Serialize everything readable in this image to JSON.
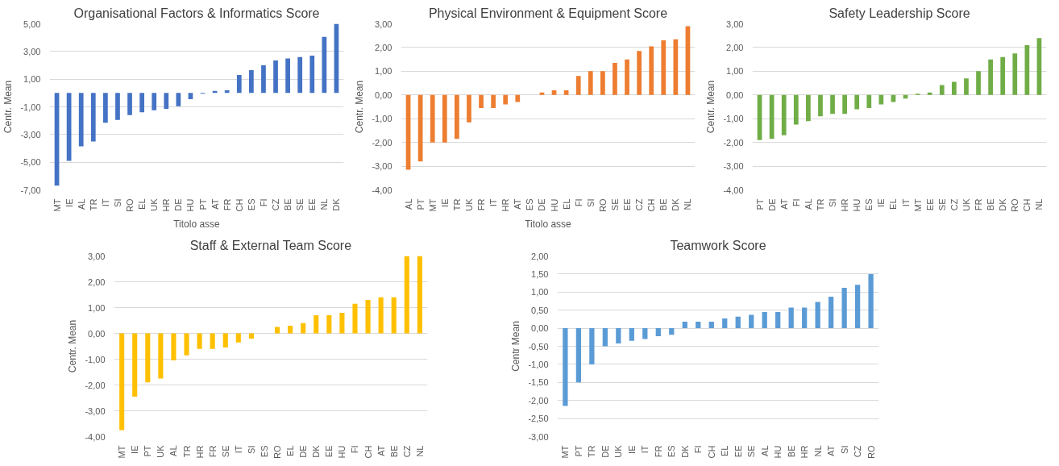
{
  "chart_data": [
    {
      "type": "bar",
      "title": "Organisational Factors & Informatics Score",
      "xlabel": "Titolo asse",
      "ylabel": "Centr. Mean",
      "categories": [
        "MT",
        "IE",
        "AL",
        "TR",
        "IT",
        "SI",
        "RO",
        "EL",
        "UK",
        "HR",
        "DE",
        "HU",
        "PT",
        "AT",
        "FR",
        "CH",
        "ES",
        "FI",
        "CZ",
        "BE",
        "SE",
        "EE",
        "NL",
        "DK"
      ],
      "values": [
        -6.7,
        -4.9,
        -3.85,
        -3.5,
        -2.15,
        -1.95,
        -1.6,
        -1.4,
        -1.25,
        -1.15,
        -0.95,
        -0.45,
        -0.05,
        0.15,
        0.2,
        1.3,
        1.65,
        2.0,
        2.35,
        2.5,
        2.6,
        2.7,
        4.05,
        5.0
      ],
      "color": "#4472c4",
      "ylim": [
        -7,
        5
      ],
      "yticks": [
        {
          "value": -7,
          "label": "-7,00"
        },
        {
          "value": -5,
          "label": "-5,00"
        },
        {
          "value": -3,
          "label": "-3,00"
        },
        {
          "value": -1,
          "label": "-1,00"
        },
        {
          "value": 1,
          "label": "1,00"
        },
        {
          "value": 3,
          "label": "3,00"
        },
        {
          "value": 5,
          "label": "5,00"
        }
      ],
      "grid": "y"
    },
    {
      "type": "bar",
      "title": "Physical Environment & Equipment Score",
      "xlabel": "Titolo asse",
      "ylabel": "Centr. Mean",
      "categories": [
        "AL",
        "PT",
        "MT",
        "IE",
        "TR",
        "UK",
        "FR",
        "IT",
        "HR",
        "AT",
        "ES",
        "DE",
        "HU",
        "EL",
        "FI",
        "SI",
        "RO",
        "SE",
        "EE",
        "CZ",
        "CH",
        "BE",
        "DK",
        "NL"
      ],
      "values": [
        -3.15,
        -2.8,
        -2.0,
        -2.0,
        -1.85,
        -1.15,
        -0.55,
        -0.55,
        -0.4,
        -0.3,
        null,
        0.1,
        0.2,
        0.2,
        0.8,
        1.0,
        1.0,
        1.35,
        1.5,
        1.85,
        2.05,
        2.3,
        2.35,
        2.9
      ],
      "color": "#ed7d31",
      "ylim": [
        -4,
        3
      ],
      "yticks": [
        {
          "value": -4,
          "label": "-4,00"
        },
        {
          "value": -3,
          "label": "-3,00"
        },
        {
          "value": -2,
          "label": "-2,00"
        },
        {
          "value": -1,
          "label": "-1,00"
        },
        {
          "value": 0,
          "label": "0,00"
        },
        {
          "value": 1,
          "label": "1,00"
        },
        {
          "value": 2,
          "label": "2,00"
        },
        {
          "value": 3,
          "label": "3,00"
        }
      ],
      "grid": "y"
    },
    {
      "type": "bar",
      "title": "Safety Leadership Score",
      "ylabel": "Centr. Mean",
      "categories": [
        "PT",
        "DE",
        "AT",
        "FI",
        "AL",
        "TR",
        "SI",
        "HR",
        "HU",
        "ES",
        "IE",
        "EL",
        "IT",
        "MT",
        "EE",
        "SE",
        "CZ",
        "UK",
        "FR",
        "BE",
        "DK",
        "RO",
        "CH",
        "NL"
      ],
      "values": [
        -1.9,
        -1.85,
        -1.7,
        -1.25,
        -1.1,
        -0.9,
        -0.8,
        -0.8,
        -0.6,
        -0.55,
        -0.4,
        -0.3,
        -0.15,
        0.05,
        0.1,
        0.42,
        0.55,
        0.7,
        1.0,
        1.5,
        1.6,
        1.75,
        2.1,
        2.4
      ],
      "color": "#70ad47",
      "ylim": [
        -4,
        3
      ],
      "yticks": [
        {
          "value": -4,
          "label": "-4,00"
        },
        {
          "value": -3,
          "label": "-3,00"
        },
        {
          "value": -2,
          "label": "-2,00"
        },
        {
          "value": -1,
          "label": "-1,00"
        },
        {
          "value": 0,
          "label": "0,00"
        },
        {
          "value": 1,
          "label": "1,00"
        },
        {
          "value": 2,
          "label": "2,00"
        },
        {
          "value": 3,
          "label": "3,00"
        }
      ],
      "grid": "y"
    },
    {
      "type": "bar",
      "title": "Staff & External Team Score",
      "ylabel": "Centr. Mean",
      "categories": [
        "MT",
        "IE",
        "PT",
        "UK",
        "AL",
        "TR",
        "HR",
        "FR",
        "SE",
        "IT",
        "SI",
        "ES",
        "RO",
        "EL",
        "DE",
        "DK",
        "EE",
        "HU",
        "FI",
        "CH",
        "AT",
        "BE",
        "CZ",
        "NL"
      ],
      "values": [
        -3.75,
        -2.45,
        -1.9,
        -1.75,
        -1.05,
        -0.85,
        -0.6,
        -0.6,
        -0.55,
        -0.35,
        -0.2,
        null,
        0.25,
        0.3,
        0.4,
        0.7,
        0.7,
        0.8,
        1.15,
        1.3,
        1.4,
        1.4,
        3.0,
        3.0
      ],
      "color": "#ffc000",
      "ylim": [
        -4,
        3
      ],
      "yticks": [
        {
          "value": -4,
          "label": "-4,00"
        },
        {
          "value": -3,
          "label": "-3,00"
        },
        {
          "value": -2,
          "label": "-2,00"
        },
        {
          "value": -1,
          "label": "-1,00"
        },
        {
          "value": 0,
          "label": "0,00"
        },
        {
          "value": 1,
          "label": "1,00"
        },
        {
          "value": 2,
          "label": "2,00"
        },
        {
          "value": 3,
          "label": "3,00"
        }
      ],
      "grid": "y"
    },
    {
      "type": "bar",
      "title": "Teamwork Score",
      "ylabel": "Centr Mean",
      "categories": [
        "MT",
        "PT",
        "TR",
        "DE",
        "UK",
        "IE",
        "IT",
        "FR",
        "ES",
        "DK",
        "FI",
        "CH",
        "EL",
        "EE",
        "SE",
        "AL",
        "HU",
        "BE",
        "HR",
        "NL",
        "AT",
        "SI",
        "CZ",
        "RO"
      ],
      "values": [
        -2.15,
        -1.5,
        -1.0,
        -0.5,
        -0.42,
        -0.35,
        -0.3,
        -0.22,
        -0.18,
        0.18,
        0.18,
        0.18,
        0.27,
        0.32,
        0.37,
        0.45,
        0.45,
        0.57,
        0.57,
        0.73,
        0.87,
        1.12,
        1.2,
        1.5
      ],
      "color": "#5b9bd5",
      "ylim": [
        -3,
        2
      ],
      "yticks": [
        {
          "value": -3,
          "label": "-3,00"
        },
        {
          "value": -2.5,
          "label": "-2,50"
        },
        {
          "value": -2,
          "label": "-2,00"
        },
        {
          "value": -1.5,
          "label": "-1,50"
        },
        {
          "value": -1,
          "label": "-1,00"
        },
        {
          "value": -0.5,
          "label": "-0,50"
        },
        {
          "value": 0,
          "label": "0,00"
        },
        {
          "value": 0.5,
          "label": "0,50"
        },
        {
          "value": 1,
          "label": "1,00"
        },
        {
          "value": 1.5,
          "label": "1,50"
        },
        {
          "value": 2,
          "label": "2,00"
        }
      ],
      "grid": "y"
    }
  ]
}
